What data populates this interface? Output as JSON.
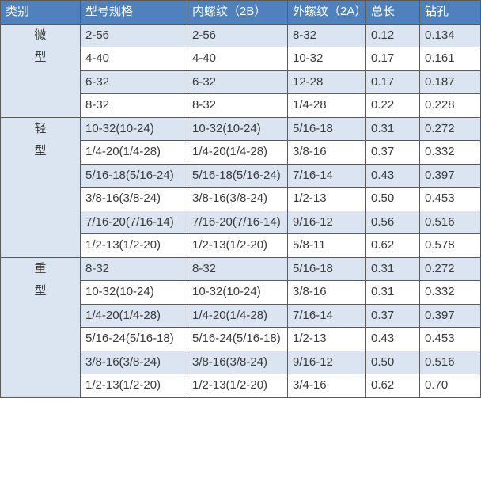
{
  "headers": [
    "类别",
    "型号规格",
    "内螺纹（2B）",
    "外螺纹（2A）",
    "总长",
    "钻孔"
  ],
  "colors": {
    "header_bg": "#4f81bd",
    "shade": "#dbe5f1",
    "header_text": "#ffffff"
  },
  "groups": [
    {
      "label": [
        "微",
        "型"
      ],
      "rows": [
        [
          "2-56",
          "2-56",
          "8-32",
          "0.12",
          "0.134"
        ],
        [
          "4-40",
          "4-40",
          "10-32",
          "0.17",
          "0.161"
        ],
        [
          "6-32",
          "6-32",
          "12-28",
          "0.17",
          "0.187"
        ],
        [
          "8-32",
          "8-32",
          "1/4-28",
          "0.22",
          "0.228"
        ]
      ]
    },
    {
      "label": [
        "轻",
        "型"
      ],
      "rows": [
        [
          "10-32(10-24)",
          "10-32(10-24)",
          "5/16-18",
          "0.31",
          "0.272"
        ],
        [
          "1/4-20(1/4-28)",
          "1/4-20(1/4-28)",
          "3/8-16",
          "0.37",
          "0.332"
        ],
        [
          "5/16-18(5/16-24)",
          "5/16-18(5/16-24)",
          "7/16-14",
          "0.43",
          "0.397"
        ],
        [
          "3/8-16(3/8-24)",
          "3/8-16(3/8-24)",
          "1/2-13",
          "0.50",
          "0.453"
        ],
        [
          "7/16-20(7/16-14)",
          "7/16-20(7/16-14)",
          "9/16-12",
          "0.56",
          "0.516"
        ],
        [
          "1/2-13(1/2-20)",
          "1/2-13(1/2-20)",
          "5/8-11",
          "0.62",
          "0.578"
        ]
      ]
    },
    {
      "label": [
        "重",
        "型"
      ],
      "rows": [
        [
          "8-32",
          "8-32",
          "5/16-18",
          "0.31",
          "0.272"
        ],
        [
          "10-32(10-24)",
          "10-32(10-24)",
          "3/8-16",
          "0.31",
          "0.332"
        ],
        [
          "1/4-20(1/4-28)",
          "1/4-20(1/4-28)",
          "7/16-14",
          "0.37",
          "0.397"
        ],
        [
          "5/16-24(5/16-18)",
          "5/16-24(5/16-18)",
          "1/2-13",
          "0.43",
          "0.453"
        ],
        [
          "3/8-16(3/8-24)",
          "3/8-16(3/8-24)",
          "9/16-12",
          "0.50",
          "0.516"
        ],
        [
          "1/2-13(1/2-20)",
          "1/2-13(1/2-20)",
          "3/4-16",
          "0.62",
          "0.70"
        ]
      ]
    }
  ]
}
